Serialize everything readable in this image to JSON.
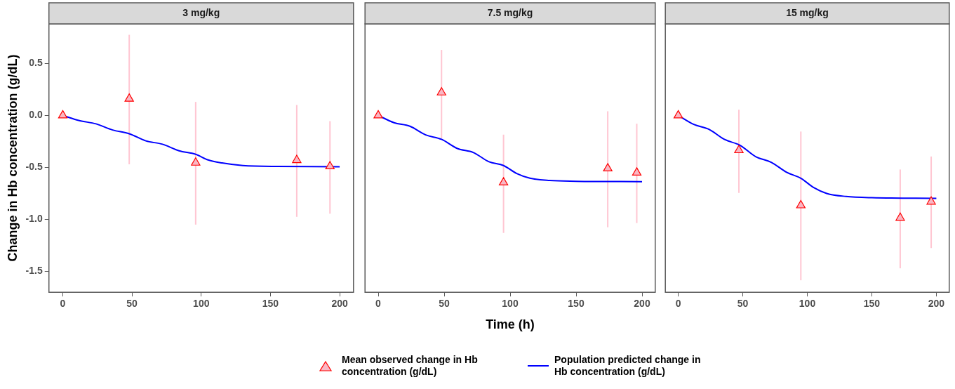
{
  "chart_data": [
    {
      "type": "line",
      "title": "3 mg/kg",
      "ylabel": "Change in Hb concentration (g/dL)",
      "xlim": [
        -10,
        210
      ],
      "xticks": [
        0,
        50,
        100,
        150,
        200
      ],
      "ylim": [
        -1.7,
        0.88
      ],
      "yticks": [
        -1.5,
        {
          "value": -1,
          "label": "-1.0"
        },
        -0.5,
        {
          "value": 0,
          "label": "0.0"
        },
        0.5
      ],
      "series": [
        {
          "type": "scatter",
          "marker": "triangle",
          "color": "#ff0000",
          "x": [
            0,
            48,
            96,
            169,
            193
          ],
          "values": [
            0,
            0.16,
            -0.455,
            -0.43,
            -0.49
          ],
          "errors": [
            null,
            [
              -0.47,
              0.775
            ],
            [
              -1.05,
              0.13
            ],
            [
              -0.975,
              0.1
            ],
            [
              -0.945,
              -0.055
            ]
          ]
        },
        {
          "type": "line",
          "color": "#0000ff",
          "x": [
            0,
            12,
            24,
            36,
            48,
            60,
            72,
            84,
            96,
            105,
            115,
            130,
            154,
            200
          ],
          "values": [
            0,
            -0.05,
            -0.081,
            -0.14,
            -0.176,
            -0.245,
            -0.277,
            -0.34,
            -0.374,
            -0.428,
            -0.457,
            -0.482,
            -0.491,
            -0.493
          ]
        }
      ]
    },
    {
      "type": "line",
      "title": "7.5 mg/kg",
      "xlabel": "Time (h)",
      "xlim": [
        -10,
        210
      ],
      "xticks": [
        0,
        50,
        100,
        150,
        200
      ],
      "ylim": [
        -1.7,
        0.88
      ],
      "tick_labels": "x",
      "legend": "bottom",
      "series": [
        {
          "type": "scatter",
          "marker": "triangle",
          "name": "Mean observed change in Hb concentration (g/dL)",
          "color": "#ff0000",
          "x": [
            0,
            48,
            95,
            174,
            196
          ],
          "values": [
            0,
            0.22,
            -0.645,
            -0.51,
            -0.55
          ],
          "errors": [
            null,
            [
              -0.22,
              0.63
            ],
            [
              -1.13,
              -0.185
            ],
            [
              -1.075,
              0.04
            ],
            [
              -1.035,
              -0.08
            ]
          ]
        },
        {
          "type": "line",
          "name": "Population predicted change in Hb concentration (g/dL)",
          "color": "#0000ff",
          "x": [
            0,
            12,
            24,
            36,
            48,
            60,
            72,
            84,
            95,
            105,
            115,
            130,
            150,
            200
          ],
          "values": [
            0,
            -0.07,
            -0.104,
            -0.187,
            -0.23,
            -0.318,
            -0.356,
            -0.446,
            -0.482,
            -0.559,
            -0.604,
            -0.626,
            -0.633,
            -0.637
          ]
        }
      ]
    },
    {
      "type": "line",
      "title": "15 mg/kg",
      "xlim": [
        -10,
        210
      ],
      "xticks": [
        0,
        50,
        100,
        150,
        200
      ],
      "ylim": [
        -1.7,
        0.88
      ],
      "tick_labels": "x",
      "series": [
        {
          "type": "scatter",
          "marker": "triangle",
          "color": "#ff0000",
          "x": [
            0,
            47,
            95,
            172,
            196
          ],
          "values": [
            0,
            -0.335,
            -0.865,
            -0.985,
            -0.83
          ],
          "errors": [
            null,
            [
              -0.745,
              0.055
            ],
            [
              -1.585,
              -0.155
            ],
            [
              -1.47,
              -0.52
            ],
            [
              -1.275,
              -0.395
            ]
          ]
        },
        {
          "type": "line",
          "color": "#0000ff",
          "x": [
            0,
            12,
            24,
            36,
            48,
            60,
            72,
            84,
            95,
            105,
            115,
            130,
            150,
            200
          ],
          "values": [
            0,
            -0.086,
            -0.135,
            -0.232,
            -0.288,
            -0.396,
            -0.45,
            -0.547,
            -0.604,
            -0.694,
            -0.75,
            -0.779,
            -0.791,
            -0.797
          ]
        }
      ]
    }
  ]
}
